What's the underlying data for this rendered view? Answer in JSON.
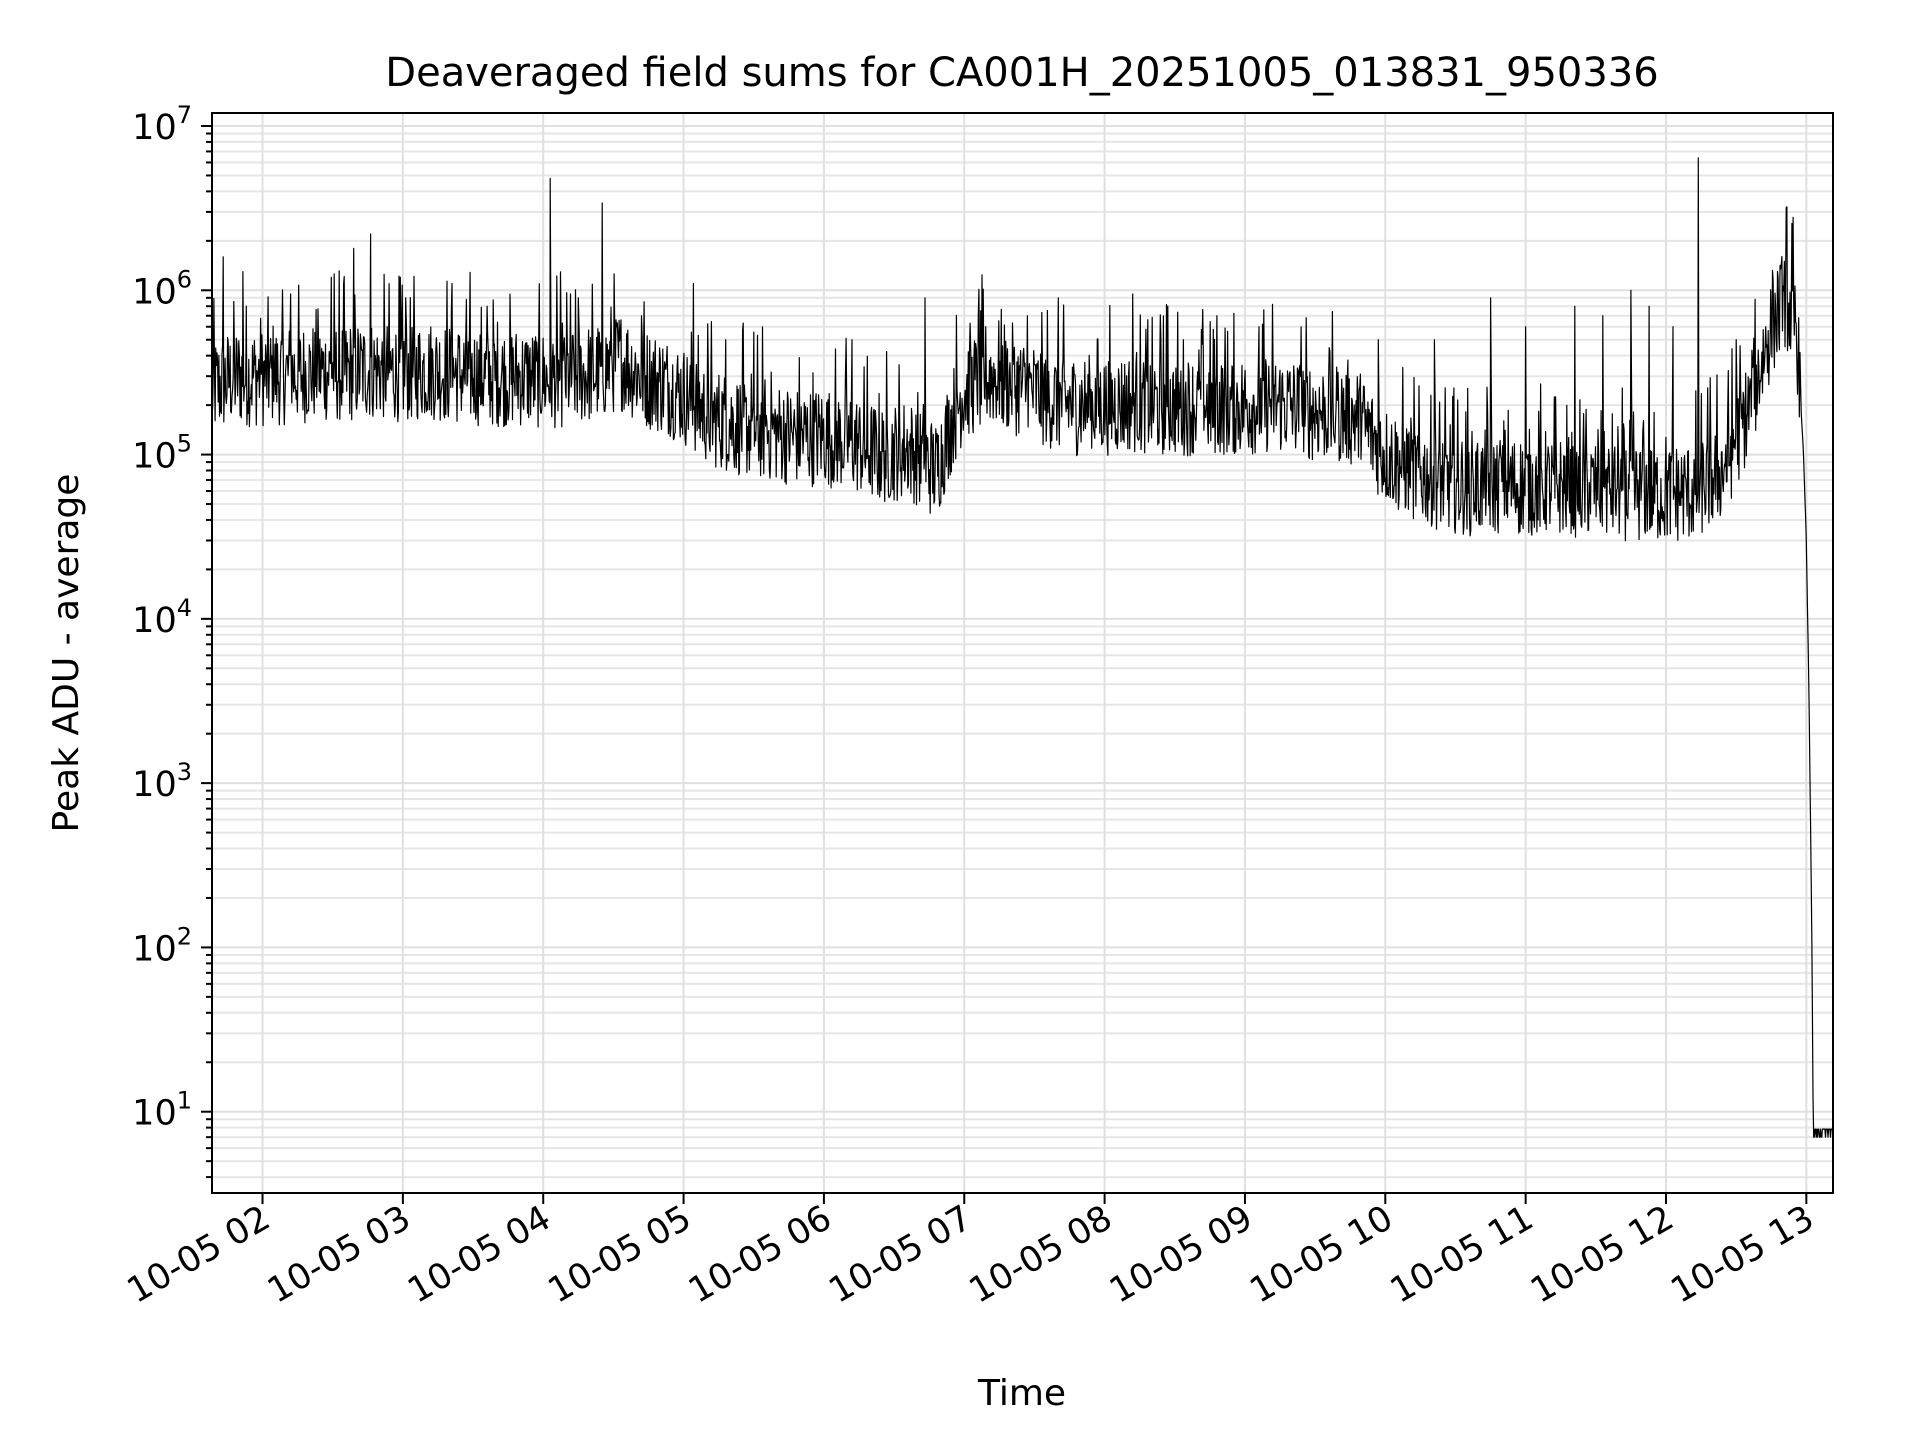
{
  "chart_data": {
    "type": "line",
    "title": "Deaveraged field sums for CA001H_20251005_013831_950336",
    "xlabel": "Time",
    "ylabel": "Peak ADU - average",
    "yscale": "log",
    "ylim": [
      3.2,
      12000000
    ],
    "xlim": [
      1.64,
      13.19
    ],
    "grid": true,
    "x_tick_values": [
      2,
      3,
      4,
      5,
      6,
      7,
      8,
      9,
      10,
      11,
      12,
      13
    ],
    "x_tick_labels": [
      "10-05 02",
      "10-05 03",
      "10-05 04",
      "10-05 05",
      "10-05 06",
      "10-05 07",
      "10-05 08",
      "10-05 09",
      "10-05 10",
      "10-05 11",
      "10-05 12",
      "10-05 13"
    ],
    "y_ticks": [
      {
        "value": 10,
        "base": "10",
        "exp": "1"
      },
      {
        "value": 100,
        "base": "10",
        "exp": "2"
      },
      {
        "value": 1000,
        "base": "10",
        "exp": "3"
      },
      {
        "value": 10000,
        "base": "10",
        "exp": "4"
      },
      {
        "value": 100000,
        "base": "10",
        "exp": "5"
      },
      {
        "value": 1000000,
        "base": "10",
        "exp": "6"
      },
      {
        "value": 10000000,
        "base": "10",
        "exp": "7"
      }
    ],
    "series": [
      {
        "name": "deaveraged field sum",
        "color": "#000000",
        "baseline": [
          [
            1.64,
            250000
          ],
          [
            1.8,
            300000
          ],
          [
            2.0,
            300000
          ],
          [
            2.2,
            310000
          ],
          [
            2.4,
            320000
          ],
          [
            2.6,
            320000
          ],
          [
            2.8,
            330000
          ],
          [
            3.0,
            320000
          ],
          [
            3.2,
            330000
          ],
          [
            3.4,
            310000
          ],
          [
            3.6,
            300000
          ],
          [
            3.8,
            300000
          ],
          [
            4.0,
            290000
          ],
          [
            4.2,
            300000
          ],
          [
            4.4,
            320000
          ],
          [
            4.55,
            380000
          ],
          [
            4.7,
            300000
          ],
          [
            4.9,
            260000
          ],
          [
            5.0,
            230000
          ],
          [
            5.2,
            170000
          ],
          [
            5.4,
            150000
          ],
          [
            5.6,
            140000
          ],
          [
            5.8,
            130000
          ],
          [
            6.0,
            130000
          ],
          [
            6.2,
            120000
          ],
          [
            6.4,
            100000
          ],
          [
            6.6,
            110000
          ],
          [
            6.8,
            80000
          ],
          [
            6.9,
            150000
          ],
          [
            7.0,
            250000
          ],
          [
            7.2,
            300000
          ],
          [
            7.4,
            260000
          ],
          [
            7.6,
            220000
          ],
          [
            7.8,
            200000
          ],
          [
            8.0,
            200000
          ],
          [
            8.2,
            210000
          ],
          [
            8.4,
            200000
          ],
          [
            8.6,
            200000
          ],
          [
            8.8,
            200000
          ],
          [
            9.0,
            200000
          ],
          [
            9.2,
            210000
          ],
          [
            9.4,
            190000
          ],
          [
            9.6,
            180000
          ],
          [
            9.8,
            170000
          ],
          [
            10.0,
            100000
          ],
          [
            10.2,
            80000
          ],
          [
            10.4,
            70000
          ],
          [
            10.6,
            65000
          ],
          [
            10.8,
            65000
          ],
          [
            11.0,
            65000
          ],
          [
            11.2,
            65000
          ],
          [
            11.4,
            63000
          ],
          [
            11.6,
            62000
          ],
          [
            11.8,
            60000
          ],
          [
            12.0,
            58000
          ],
          [
            12.2,
            60000
          ],
          [
            12.4,
            80000
          ],
          [
            12.6,
            200000
          ],
          [
            12.75,
            600000
          ],
          [
            12.85,
            900000
          ],
          [
            12.93,
            600000
          ],
          [
            12.98,
            100000
          ],
          [
            13.0,
            30000
          ],
          [
            13.02,
            3000
          ],
          [
            13.04,
            100
          ],
          [
            13.05,
            7
          ],
          [
            13.19,
            7
          ]
        ],
        "spikes": [
          [
            1.72,
            1600000
          ],
          [
            1.86,
            1300000
          ],
          [
            2.2,
            950000
          ],
          [
            2.49,
            1200000
          ],
          [
            2.65,
            1800000
          ],
          [
            2.77,
            2200000
          ],
          [
            3.02,
            900000
          ],
          [
            3.35,
            1100000
          ],
          [
            3.6,
            800000
          ],
          [
            4.05,
            4800000
          ],
          [
            4.25,
            900000
          ],
          [
            4.42,
            3400000
          ],
          [
            4.7,
            700000
          ],
          [
            5.07,
            1100000
          ],
          [
            5.3,
            500000
          ],
          [
            6.2,
            500000
          ],
          [
            6.72,
            900000
          ],
          [
            7.1,
            700000
          ],
          [
            7.45,
            700000
          ],
          [
            7.67,
            900000
          ],
          [
            8.2,
            950000
          ],
          [
            8.45,
            800000
          ],
          [
            8.8,
            700000
          ],
          [
            9.1,
            600000
          ],
          [
            9.4,
            600000
          ],
          [
            9.95,
            500000
          ],
          [
            10.35,
            500000
          ],
          [
            10.75,
            900000
          ],
          [
            11.0,
            600000
          ],
          [
            11.35,
            800000
          ],
          [
            11.55,
            700000
          ],
          [
            11.75,
            1000000
          ],
          [
            11.88,
            800000
          ],
          [
            12.05,
            600000
          ],
          [
            12.23,
            6400000
          ],
          [
            12.5,
            500000
          ]
        ]
      }
    ]
  }
}
